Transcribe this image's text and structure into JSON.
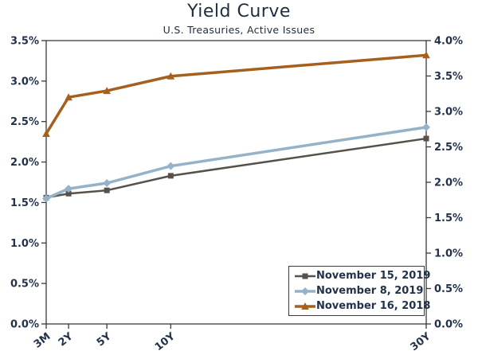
{
  "header": {
    "title": "Yield Curve",
    "subtitle": "U.S. Treasuries, Active Issues"
  },
  "chart_data": {
    "type": "line",
    "title": "Yield Curve",
    "subtitle": "U.S. Treasuries, Active Issues",
    "categories": [
      "3M",
      "2Y",
      "5Y",
      "10Y",
      "30Y"
    ],
    "category_years": [
      0.25,
      2,
      5,
      10,
      30
    ],
    "x_axis_scale": "linear in maturity years",
    "series": [
      {
        "name": "November 15, 2019",
        "color": "#57514a",
        "marker": "square",
        "line_width": 2.5,
        "values": [
          1.56,
          1.61,
          1.65,
          1.83,
          2.29
        ]
      },
      {
        "name": "November 8, 2019",
        "color": "#95b2c9",
        "marker": "diamond",
        "line_width": 3.5,
        "values": [
          1.55,
          1.67,
          1.74,
          1.95,
          2.43
        ]
      },
      {
        "name": "November 16, 2018",
        "color": "#a4601c",
        "marker": "triangle",
        "line_width": 3.5,
        "values": [
          2.35,
          2.8,
          2.88,
          3.06,
          3.32
        ]
      }
    ],
    "left_axis": {
      "min": 0.0,
      "max": 3.5,
      "step": 0.5,
      "tick_labels": [
        "3.5%",
        "3.0%",
        "2.5%",
        "2.0%",
        "1.5%",
        "1.0%",
        "0.5%",
        "0.0%"
      ]
    },
    "right_axis": {
      "min": 0.0,
      "max": 4.0,
      "step": 0.5,
      "tick_labels": [
        "4.0%",
        "3.5%",
        "3.0%",
        "2.5%",
        "2.0%",
        "1.5%",
        "1.0%",
        "0.5%",
        "0.0%"
      ]
    },
    "gridlines": false,
    "plot_background": "#ffffff",
    "axis_color": "#3a3a3a",
    "text_color": "#22324a",
    "legend": {
      "position": "bottom-right-inside",
      "entries": [
        "November 15, 2019",
        "November 8, 2019",
        "November 16, 2018"
      ]
    }
  }
}
